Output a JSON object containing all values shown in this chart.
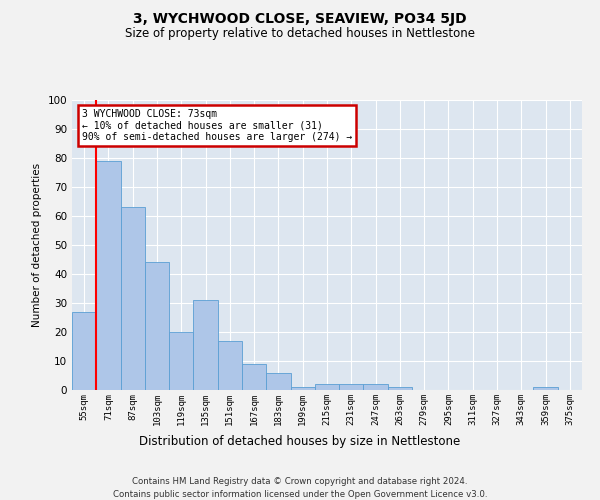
{
  "title": "3, WYCHWOOD CLOSE, SEAVIEW, PO34 5JD",
  "subtitle": "Size of property relative to detached houses in Nettlestone",
  "xlabel": "Distribution of detached houses by size in Nettlestone",
  "ylabel": "Number of detached properties",
  "categories": [
    "55sqm",
    "71sqm",
    "87sqm",
    "103sqm",
    "119sqm",
    "135sqm",
    "151sqm",
    "167sqm",
    "183sqm",
    "199sqm",
    "215sqm",
    "231sqm",
    "247sqm",
    "263sqm",
    "279sqm",
    "295sqm",
    "311sqm",
    "327sqm",
    "343sqm",
    "359sqm",
    "375sqm"
  ],
  "values": [
    27,
    79,
    63,
    44,
    20,
    31,
    17,
    9,
    6,
    1,
    2,
    2,
    2,
    1,
    0,
    0,
    0,
    0,
    0,
    1,
    0
  ],
  "bar_color": "#aec6e8",
  "bar_edge_color": "#5a9fd4",
  "background_color": "#dde6f0",
  "grid_color": "#ffffff",
  "annotation_text": "3 WYCHWOOD CLOSE: 73sqm\n← 10% of detached houses are smaller (31)\n90% of semi-detached houses are larger (274) →",
  "annotation_box_color": "#ffffff",
  "annotation_box_edge": "#cc0000",
  "ylim": [
    0,
    100
  ],
  "yticks": [
    0,
    10,
    20,
    30,
    40,
    50,
    60,
    70,
    80,
    90,
    100
  ],
  "footer1": "Contains HM Land Registry data © Crown copyright and database right 2024.",
  "footer2": "Contains public sector information licensed under the Open Government Licence v3.0.",
  "fig_width": 6.0,
  "fig_height": 5.0,
  "dpi": 100
}
